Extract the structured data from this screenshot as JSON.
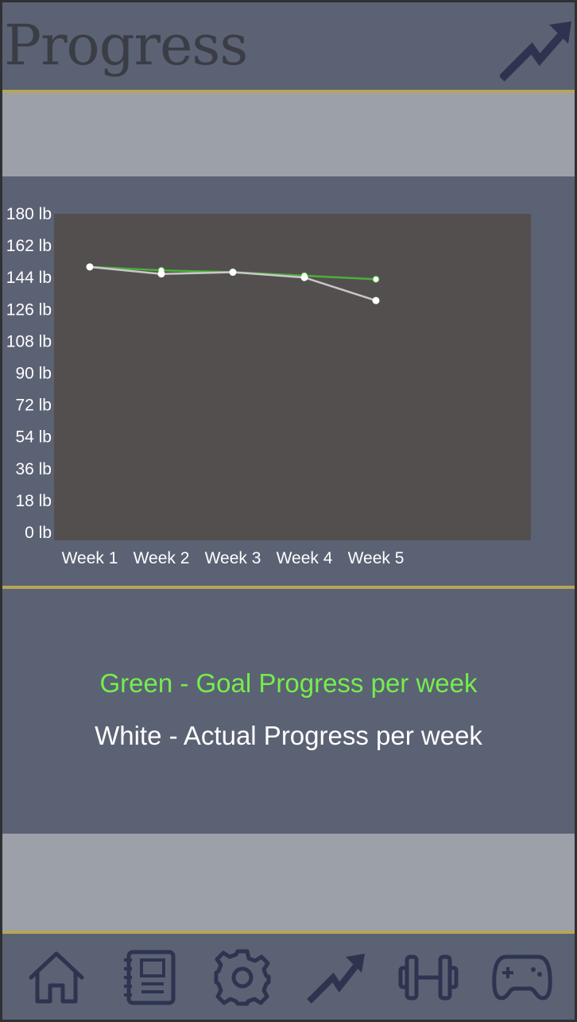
{
  "header": {
    "title": "Progress",
    "icon": "trend-up-icon"
  },
  "colors": {
    "background": "#5b6274",
    "accent_line": "#b7a557",
    "band": "#9ca0a9",
    "plot_area": "#544f4f",
    "goal": "#4caf3b",
    "actual": "#c8c8c8",
    "icon": "#2e3450"
  },
  "chart_data": {
    "type": "line",
    "categories": [
      "Week 1",
      "Week 2",
      "Week 3",
      "Week 4",
      "Week 5"
    ],
    "y_ticks": [
      "180 lb",
      "162 lb",
      "144 lb",
      "126 lb",
      "108 lb",
      "90 lb",
      "72 lb",
      "54 lb",
      "36 lb",
      "18 lb",
      "0 lb"
    ],
    "ylim": [
      0,
      180
    ],
    "series": [
      {
        "name": "Goal Progress per week",
        "color": "#4caf3b",
        "values": [
          150,
          148,
          147,
          145,
          143
        ]
      },
      {
        "name": "Actual Progress per week",
        "color": "#c8c8c8",
        "values": [
          150,
          146,
          147,
          144,
          131
        ]
      }
    ]
  },
  "legend": {
    "green": "Green - Goal Progress per week",
    "white": "White - Actual Progress per week"
  },
  "nav": {
    "items": [
      {
        "name": "home",
        "icon": "home-icon"
      },
      {
        "name": "journal",
        "icon": "notebook-icon"
      },
      {
        "name": "settings",
        "icon": "gear-icon"
      },
      {
        "name": "progress",
        "icon": "trend-up-icon"
      },
      {
        "name": "workout",
        "icon": "dumbbell-icon"
      },
      {
        "name": "games",
        "icon": "gamepad-icon"
      }
    ]
  }
}
